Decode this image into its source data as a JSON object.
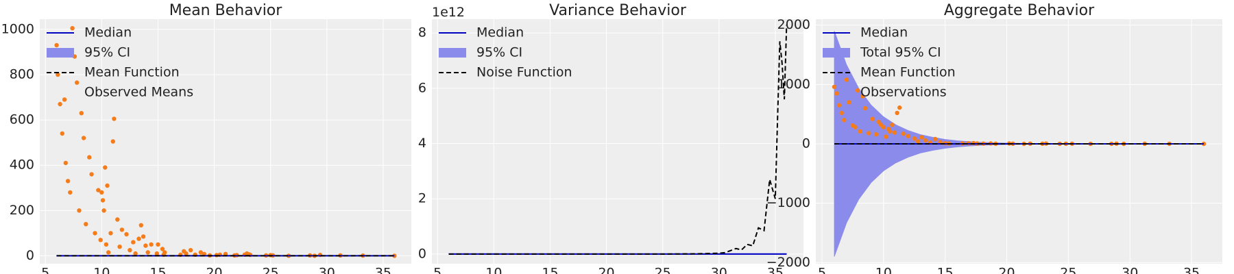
{
  "colors": {
    "background": "#eeeeee",
    "grid": "#ffffff",
    "median": "#0000c0",
    "band": "#8b8bec",
    "dashed": "#000000",
    "points": "#f57c1a"
  },
  "chart_data": [
    {
      "type": "scatter",
      "title": "Mean Behavior",
      "xlabel": "",
      "ylabel": "",
      "xlim": [
        4.5,
        37.5
      ],
      "ylim": [
        -35,
        1045
      ],
      "xticks": [
        5,
        10,
        15,
        20,
        25,
        30,
        35
      ],
      "yticks": [
        0,
        200,
        400,
        600,
        800,
        1000
      ],
      "grid": true,
      "legend_position": "top-left",
      "legend": [
        {
          "label": "Median",
          "kind": "line"
        },
        {
          "label": "95% CI",
          "kind": "patch"
        },
        {
          "label": "Mean Function",
          "kind": "dashed"
        },
        {
          "label": "Observed Means",
          "kind": "none"
        }
      ],
      "series": [
        {
          "name": "Median",
          "kind": "line",
          "x": [
            6,
            36
          ],
          "y": [
            0,
            0
          ]
        },
        {
          "name": "95% CI",
          "kind": "band",
          "x": [
            6,
            36
          ],
          "y_low": [
            -2,
            -2
          ],
          "y_high": [
            2,
            2
          ]
        },
        {
          "name": "Mean Function",
          "kind": "dashed",
          "x": [
            6,
            36
          ],
          "y": [
            0,
            0
          ]
        },
        {
          "name": "Observed Means",
          "kind": "scatter",
          "x": [
            6.0,
            6.1,
            6.3,
            6.5,
            6.7,
            6.8,
            7.0,
            7.2,
            7.4,
            7.6,
            7.8,
            8.0,
            8.2,
            8.4,
            8.6,
            8.9,
            9.1,
            9.4,
            9.7,
            9.9,
            10.0,
            10.1,
            10.2,
            10.3,
            10.4,
            10.5,
            10.6,
            10.8,
            11.0,
            11.1,
            11.4,
            11.6,
            11.8,
            12.2,
            12.5,
            12.8,
            13.0,
            13.3,
            13.5,
            13.7,
            13.9,
            14.1,
            14.4,
            14.9,
            15.0,
            15.4,
            15.5,
            15.6,
            17.0,
            17.3,
            17.5,
            17.9,
            18.3,
            18.8,
            19.1,
            19.6,
            20.2,
            20.5,
            21.0,
            21.8,
            22.0,
            22.7,
            22.9,
            23.1,
            23.2,
            24.6,
            25.0,
            25.2,
            26.6,
            28.5,
            28.9,
            29.4,
            31.2,
            33.2,
            36.0
          ],
          "y": [
            930,
            800,
            670,
            540,
            690,
            410,
            330,
            280,
            1005,
            880,
            765,
            200,
            630,
            520,
            140,
            435,
            360,
            100,
            290,
            70,
            280,
            245,
            200,
            390,
            50,
            310,
            15,
            100,
            505,
            605,
            160,
            40,
            115,
            95,
            25,
            60,
            10,
            75,
            135,
            85,
            45,
            15,
            50,
            10,
            50,
            30,
            5,
            15,
            5,
            20,
            10,
            25,
            5,
            15,
            8,
            2,
            3,
            5,
            8,
            2,
            3,
            5,
            10,
            6,
            4,
            2,
            3,
            2,
            0,
            2,
            0,
            4,
            2,
            1,
            0
          ]
        }
      ]
    },
    {
      "type": "line",
      "title": "Variance Behavior",
      "xlabel": "",
      "ylabel": "",
      "offset_text": "1e12",
      "xlim": [
        4.5,
        37.5
      ],
      "ylim": [
        -0.35,
        8.5
      ],
      "xticks": [
        5,
        10,
        15,
        20,
        25,
        30,
        35
      ],
      "yticks": [
        0,
        2,
        4,
        6,
        8
      ],
      "grid": true,
      "legend_position": "top-left",
      "legend": [
        {
          "label": "Median",
          "kind": "line"
        },
        {
          "label": "95% CI",
          "kind": "patch"
        },
        {
          "label": "Noise Function",
          "kind": "dashed"
        }
      ],
      "series": [
        {
          "name": "Median",
          "kind": "line",
          "x": [
            6,
            36
          ],
          "y": [
            0,
            0
          ]
        },
        {
          "name": "95% CI",
          "kind": "band",
          "x": [
            6,
            36
          ],
          "y_low": [
            0,
            0
          ],
          "y_high": [
            0.02,
            0.02
          ]
        },
        {
          "name": "Noise Function",
          "kind": "dashed",
          "x": [
            6,
            25,
            28,
            30,
            30.5,
            31,
            31.5,
            32,
            32.5,
            33,
            33.5,
            34,
            34.5,
            35,
            35.2,
            35.4,
            35.6,
            35.8,
            36
          ],
          "y": [
            0,
            0,
            0.01,
            0.03,
            0.05,
            0.12,
            0.2,
            0.15,
            0.35,
            0.3,
            0.95,
            0.85,
            2.7,
            2.0,
            4.9,
            7.7,
            6.9,
            5.6,
            8.3
          ]
        }
      ]
    },
    {
      "type": "scatter",
      "title": "Aggregate Behavior",
      "xlabel": "",
      "ylabel": "",
      "xlim": [
        4.5,
        37.5
      ],
      "ylim": [
        -2020,
        2100
      ],
      "xticks": [
        5,
        10,
        15,
        20,
        25,
        30,
        35
      ],
      "yticks": [
        -2000,
        -1000,
        0,
        1000,
        2000
      ],
      "grid": true,
      "legend_position": "top-left",
      "legend": [
        {
          "label": "Median",
          "kind": "line"
        },
        {
          "label": "Total 95% CI",
          "kind": "patch"
        },
        {
          "label": "Mean Function",
          "kind": "dashed"
        },
        {
          "label": "Observations",
          "kind": "none"
        }
      ],
      "series": [
        {
          "name": "Median",
          "kind": "line",
          "x": [
            6,
            36
          ],
          "y": [
            0,
            0
          ]
        },
        {
          "name": "Total 95% CI",
          "kind": "band",
          "x": [
            6,
            7,
            8,
            9,
            10,
            11,
            12,
            13,
            14,
            15,
            16,
            17,
            18,
            20,
            22,
            25,
            28,
            31,
            36
          ],
          "y_low": [
            -1900,
            -1330,
            -930,
            -650,
            -455,
            -320,
            -225,
            -155,
            -110,
            -75,
            -52,
            -36,
            -25,
            -12,
            -6,
            -2,
            -1,
            0,
            0
          ],
          "y_high": [
            1900,
            1330,
            930,
            650,
            455,
            320,
            225,
            155,
            110,
            75,
            52,
            36,
            25,
            12,
            6,
            2,
            1,
            0,
            0
          ]
        },
        {
          "name": "Mean Function",
          "kind": "dashed",
          "x": [
            6,
            36
          ],
          "y": [
            0,
            0
          ]
        },
        {
          "name": "Observations",
          "kind": "scatter",
          "x": [
            6.0,
            6.2,
            6.4,
            6.6,
            6.8,
            7.0,
            7.2,
            7.5,
            7.7,
            7.9,
            8.1,
            8.3,
            8.5,
            8.8,
            9.1,
            9.4,
            9.6,
            9.8,
            10.0,
            10.2,
            10.4,
            10.5,
            10.7,
            10.9,
            11.1,
            11.3,
            11.6,
            12.0,
            12.5,
            12.8,
            13.1,
            13.4,
            13.8,
            14.2,
            14.6,
            15.0,
            15.3,
            16.4,
            16.9,
            17.3,
            17.6,
            18.1,
            18.7,
            19.1,
            20.2,
            20.5,
            21.4,
            21.9,
            22.9,
            23.2,
            24.3,
            24.8,
            25.3,
            26.8,
            28.5,
            28.9,
            29.5,
            31.2,
            33.2,
            36.0
          ],
          "y": [
            960,
            850,
            650,
            520,
            400,
            1080,
            700,
            310,
            280,
            900,
            210,
            800,
            600,
            180,
            420,
            160,
            370,
            320,
            280,
            120,
            250,
            210,
            320,
            190,
            520,
            610,
            170,
            130,
            90,
            40,
            110,
            60,
            20,
            80,
            30,
            10,
            5,
            8,
            10,
            12,
            5,
            3,
            7,
            2,
            5,
            2,
            0,
            3,
            2,
            4,
            1,
            2,
            2,
            0,
            1,
            3,
            0,
            2,
            1,
            0
          ]
        }
      ]
    }
  ]
}
